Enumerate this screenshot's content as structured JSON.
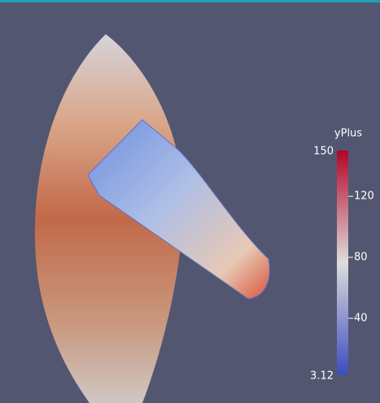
{
  "colorbar": {
    "title": "yPlus",
    "range": [
      3.12,
      150
    ],
    "ticks": [
      40,
      80,
      120
    ]
  }
}
